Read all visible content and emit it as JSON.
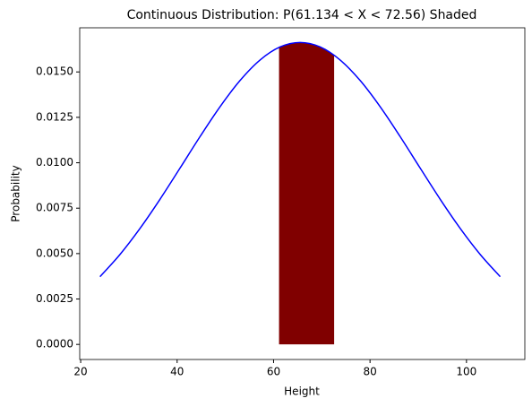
{
  "chart_data": {
    "type": "line",
    "title": "Continuous Distribution: P(61.134 < X < 72.56) Shaded",
    "x_label": "Height",
    "y_label": "Probability",
    "curve": {
      "color": "#0000ff",
      "x": [
        24,
        28.15,
        32.3,
        36.45,
        40.6,
        44.75,
        48.9,
        53.05,
        57.2,
        61.35,
        65.5,
        69.65,
        73.8,
        77.95,
        82.1,
        86.25,
        90.4,
        94.55,
        98.7,
        102.85,
        107
      ],
      "y": [
        0.003728,
        0.004952,
        0.006385,
        0.00799,
        0.009705,
        0.011439,
        0.013086,
        0.01453,
        0.015658,
        0.016376,
        0.016623,
        0.016376,
        0.015658,
        0.01453,
        0.013086,
        0.011439,
        0.009705,
        0.00799,
        0.006385,
        0.004952,
        0.003728
      ]
    },
    "shaded": {
      "color": "#800000",
      "x": [
        61.134,
        63,
        65.5,
        68,
        70,
        72.56
      ],
      "y": [
        0.01635,
        0.016533,
        0.016623,
        0.016533,
        0.016333,
        0.015919
      ]
    },
    "xlim": [
      19.8,
      112.1
    ],
    "ylim": [
      -0.00083,
      0.01743
    ],
    "xticks": [
      20,
      40,
      60,
      80,
      100
    ],
    "yticks": [
      {
        "value": 0,
        "label": "0.0000"
      },
      {
        "value": 0.0025,
        "label": "0.0025"
      },
      {
        "value": 0.005,
        "label": "0.0050"
      },
      {
        "value": 0.0075,
        "label": "0.0075"
      },
      {
        "value": 0.01,
        "label": "0.0100"
      },
      {
        "value": 0.0125,
        "label": "0.0125"
      },
      {
        "value": 0.015,
        "label": "0.0150"
      }
    ],
    "grid": false
  }
}
